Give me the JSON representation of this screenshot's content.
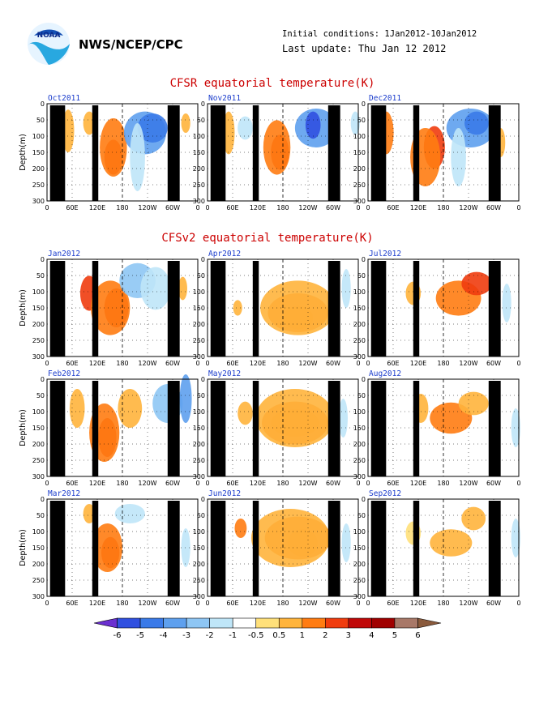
{
  "header": {
    "agency": "NWS/NCEP/CPC",
    "initial_conditions": "Initial conditions: 1Jan2012-10Jan2012",
    "last_update": "Last update: Thu Jan 12 2012",
    "logo_text": "NOAA"
  },
  "sections": {
    "cfsr_title": "CFSR equatorial temperature(K)",
    "cfsv2_title": "CFSv2 equatorial temperature(K)"
  },
  "colors": {
    "title_red": "#cc0000",
    "panel_label_blue": "#1a3ccc",
    "land_mask": "#000000"
  },
  "chart_data": {
    "type": "heatmap",
    "variable": "equatorial temperature anomaly (K)",
    "ylabel": "Depth(m)",
    "y_ticks": [
      0,
      50,
      100,
      150,
      200,
      250,
      300
    ],
    "x_ticks": [
      "0",
      "60E",
      "120E",
      "180",
      "120W",
      "60W",
      "0"
    ],
    "panels": [
      {
        "label": "Oct2011",
        "group": "cfsr"
      },
      {
        "label": "Nov2011",
        "group": "cfsr"
      },
      {
        "label": "Dec2011",
        "group": "cfsr"
      },
      {
        "label": "Jan2012",
        "group": "cfsv2"
      },
      {
        "label": "Apr2012",
        "group": "cfsv2"
      },
      {
        "label": "Jul2012",
        "group": "cfsv2"
      },
      {
        "label": "Feb2012",
        "group": "cfsv2"
      },
      {
        "label": "May2012",
        "group": "cfsv2"
      },
      {
        "label": "Aug2012",
        "group": "cfsv2"
      },
      {
        "label": "Mar2012",
        "group": "cfsv2"
      },
      {
        "label": "Jun2012",
        "group": "cfsv2"
      },
      {
        "label": "Sep2012",
        "group": "cfsv2"
      }
    ],
    "colorbar": {
      "labels": [
        "-6",
        "-5",
        "-4",
        "-3",
        "-2",
        "-1",
        "-0.5",
        "0.5",
        "1",
        "2",
        "3",
        "4",
        "5",
        "6"
      ],
      "colors": [
        "#6a2fd0",
        "#3050e0",
        "#3a7ae8",
        "#5ea0ee",
        "#8ec6f4",
        "#bfe6f8",
        "#ffffff",
        "#ffe07a",
        "#ffb43c",
        "#ff7c12",
        "#f03c0e",
        "#c00808",
        "#a00000",
        "#a87868",
        "#8a5a3c"
      ]
    }
  }
}
